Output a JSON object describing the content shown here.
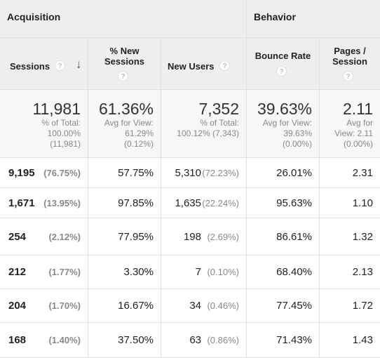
{
  "groups": {
    "acquisition": "Acquisition",
    "behavior": "Behavior"
  },
  "columns": {
    "sessions": "Sessions",
    "new_sessions": "% New Sessions",
    "new_users": "New Users",
    "bounce_rate": "Bounce Rate",
    "pages_session": "Pages / Session"
  },
  "totals": {
    "sessions": {
      "value": "11,981",
      "l1": "% of Total:",
      "l2": "100.00%",
      "l3": "(11,981)"
    },
    "new_sessions": {
      "value": "61.36%",
      "l1": "Avg for View:",
      "l2": "61.29%",
      "l3": "(0.12%)"
    },
    "new_users": {
      "value": "7,352",
      "l1": "% of Total:",
      "l2": "100.12% (7,343)"
    },
    "bounce_rate": {
      "value": "39.63%",
      "l1": "Avg for View:",
      "l2": "39.63%",
      "l3": "(0.00%)"
    },
    "pages_session": {
      "value": "2.11",
      "l1": "Avg for",
      "l2": "View: 2.11",
      "l3": "(0.00%)"
    }
  },
  "rows": [
    {
      "sessions": "9,195",
      "sessions_pct": "(76.75%)",
      "new_sessions": "57.75%",
      "new_users": "5,310",
      "new_users_pct": "(72.23%)",
      "bounce_rate": "26.01%",
      "pages_session": "2.31"
    },
    {
      "sessions": "1,671",
      "sessions_pct": "(13.95%)",
      "new_sessions": "97.85%",
      "new_users": "1,635",
      "new_users_pct": "(22.24%)",
      "bounce_rate": "95.63%",
      "pages_session": "1.10"
    },
    {
      "sessions": "254",
      "sessions_pct": "(2.12%)",
      "new_sessions": "77.95%",
      "new_users": "198",
      "new_users_pct": "(2.69%)",
      "bounce_rate": "86.61%",
      "pages_session": "1.32"
    },
    {
      "sessions": "212",
      "sessions_pct": "(1.77%)",
      "new_sessions": "3.30%",
      "new_users": "7",
      "new_users_pct": "(0.10%)",
      "bounce_rate": "68.40%",
      "pages_session": "2.13"
    },
    {
      "sessions": "204",
      "sessions_pct": "(1.70%)",
      "new_sessions": "16.67%",
      "new_users": "34",
      "new_users_pct": "(0.46%)",
      "bounce_rate": "77.45%",
      "pages_session": "1.72"
    },
    {
      "sessions": "168",
      "sessions_pct": "(1.40%)",
      "new_sessions": "37.50%",
      "new_users": "63",
      "new_users_pct": "(0.86%)",
      "bounce_rate": "71.43%",
      "pages_session": "1.43"
    }
  ],
  "icons": {
    "help": "?",
    "sort_desc": "↓"
  }
}
